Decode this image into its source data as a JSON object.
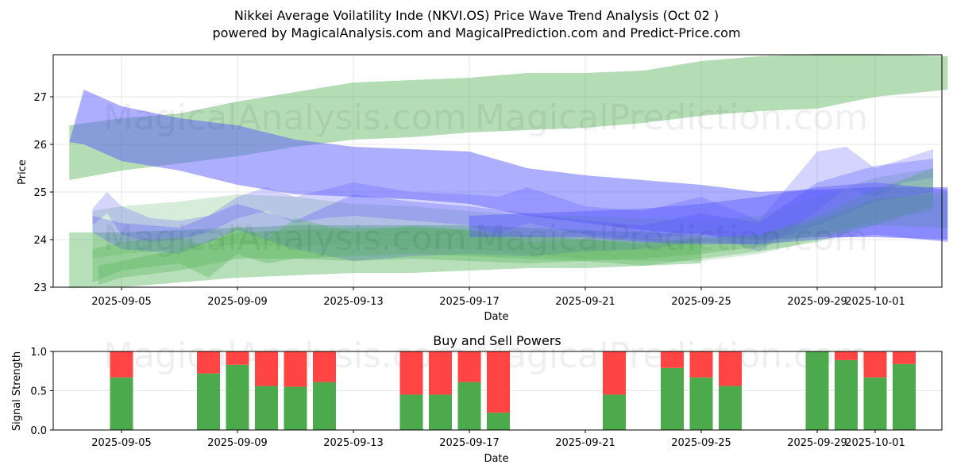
{
  "header": {
    "title": "Nikkei Average Voilatility Inde (NKVI.OS) Price Wave Trend Analysis (Oct 02 )",
    "subtitle": "powered by MagicalAnalysis.com and MagicalPrediction.com and Predict-Price.com"
  },
  "watermarks": [
    "MagicalAnalysis.com",
    "MagicalPrediction.com"
  ],
  "colors": {
    "green_band": "#4caf50",
    "blue_band": "#5555ff",
    "buy": "#4caa4c",
    "sell": "#ff4444"
  },
  "chart_data": [
    {
      "type": "area",
      "title": "",
      "xlabel": "Date",
      "ylabel": "Price",
      "ylim": [
        22.98,
        27.88
      ],
      "xlim_days_from_2025-09-01": [
        1.95,
        32.6
      ],
      "grid": true,
      "x_ticks": [
        "2025-09-05",
        "2025-09-09",
        "2025-09-13",
        "2025-09-17",
        "2025-09-21",
        "2025-09-25",
        "2025-09-29",
        "2025-10-01"
      ],
      "x_tick_days": [
        4,
        8,
        12,
        16,
        20,
        24,
        28,
        30
      ],
      "y_ticks": [
        "23",
        "24",
        "25",
        "26",
        "27"
      ],
      "y_tick_values": [
        23,
        24,
        25,
        26,
        27
      ],
      "bands": [
        {
          "name": "green-upper-band",
          "color": "green",
          "opacity": 0.42,
          "x": [
            2.2,
            4,
            6,
            8,
            10,
            12,
            14,
            16,
            18,
            20,
            22,
            24,
            26,
            28,
            30,
            32.5
          ],
          "upper": [
            26.4,
            26.55,
            26.65,
            26.9,
            27.1,
            27.3,
            27.35,
            27.4,
            27.5,
            27.5,
            27.55,
            27.75,
            27.85,
            27.9,
            27.9,
            27.85
          ],
          "lower": [
            25.25,
            25.45,
            25.6,
            25.75,
            25.95,
            26.1,
            26.15,
            26.25,
            26.3,
            26.35,
            26.45,
            26.6,
            26.7,
            26.75,
            27.0,
            27.15
          ]
        },
        {
          "name": "blue-upper-band",
          "color": "blue",
          "opacity": 0.48,
          "x": [
            2.2,
            2.7,
            4,
            6,
            8,
            10,
            12,
            14,
            16,
            18,
            20,
            22,
            24,
            26,
            28,
            30,
            32.5
          ],
          "upper": [
            26.05,
            27.15,
            26.8,
            26.55,
            26.4,
            26.1,
            25.95,
            25.9,
            25.85,
            25.5,
            25.35,
            25.25,
            25.15,
            25.0,
            25.05,
            25.1,
            25.1
          ],
          "lower": [
            26.05,
            26.0,
            25.65,
            25.45,
            25.15,
            24.95,
            24.9,
            24.85,
            24.75,
            24.5,
            24.35,
            24.2,
            24.1,
            24.0,
            24.05,
            24.05,
            24.0
          ]
        },
        {
          "name": "green-lower-band-1",
          "color": "green",
          "opacity": 0.4,
          "x": [
            2.2,
            4,
            6,
            8,
            10,
            12,
            14,
            16,
            18,
            20,
            22,
            24
          ],
          "upper": [
            24.15,
            24.15,
            24.2,
            24.25,
            24.3,
            24.3,
            24.3,
            24.3,
            24.25,
            24.2,
            24.15,
            24.1
          ],
          "lower": [
            22.98,
            23.0,
            23.1,
            23.2,
            23.25,
            23.3,
            23.3,
            23.35,
            23.4,
            23.4,
            23.45,
            23.5
          ]
        },
        {
          "name": "green-lower-band-2",
          "color": "green",
          "opacity": 0.22,
          "x": [
            3.0,
            4,
            6,
            8,
            10,
            12,
            14,
            16,
            18,
            20,
            22,
            24,
            26,
            28,
            30,
            32
          ],
          "upper": [
            24.6,
            24.7,
            24.8,
            24.95,
            24.9,
            24.75,
            24.7,
            24.6,
            24.5,
            24.5,
            24.45,
            24.4,
            24.5,
            24.9,
            25.3,
            25.5
          ],
          "lower": [
            23.6,
            23.7,
            23.8,
            23.9,
            23.85,
            23.9,
            23.85,
            23.8,
            23.7,
            23.6,
            23.55,
            23.55,
            23.7,
            24.0,
            24.4,
            24.6
          ]
        },
        {
          "name": "blue-lower-band-1",
          "color": "blue",
          "opacity": 0.25,
          "x": [
            3.0,
            3.5,
            4,
            5,
            6,
            7,
            8,
            9,
            10,
            11,
            12,
            14,
            16,
            17,
            18,
            20,
            22,
            24,
            26,
            28,
            29,
            30,
            31,
            32
          ],
          "upper": [
            24.65,
            25.0,
            24.7,
            24.45,
            24.4,
            24.5,
            24.9,
            25.1,
            24.9,
            25.05,
            25.2,
            25.0,
            24.95,
            24.9,
            25.1,
            24.7,
            24.6,
            24.9,
            24.4,
            25.85,
            25.95,
            25.5,
            25.7,
            25.9
          ],
          "lower": [
            24.3,
            24.55,
            24.1,
            23.95,
            24.0,
            24.15,
            24.45,
            24.6,
            24.35,
            24.45,
            24.5,
            24.4,
            24.3,
            24.1,
            24.35,
            24.1,
            24.0,
            24.15,
            23.75,
            24.6,
            25.1,
            24.9,
            25.2,
            25.3
          ]
        },
        {
          "name": "blue-lower-band-2",
          "color": "blue",
          "opacity": 0.3,
          "x": [
            3.0,
            4,
            6,
            8,
            10,
            12,
            14,
            16,
            18,
            20,
            22,
            24,
            26,
            28,
            30,
            32
          ],
          "upper": [
            24.5,
            24.35,
            24.25,
            24.75,
            24.4,
            24.95,
            24.8,
            24.7,
            24.55,
            24.4,
            24.3,
            24.55,
            24.35,
            25.2,
            25.55,
            25.7
          ],
          "lower": [
            24.15,
            23.8,
            23.7,
            24.2,
            23.8,
            23.55,
            23.65,
            23.7,
            23.65,
            23.75,
            23.8,
            23.95,
            23.9,
            24.3,
            24.8,
            25.0
          ]
        },
        {
          "name": "green-lower-band-3",
          "color": "green",
          "opacity": 0.3,
          "x": [
            3.0,
            4,
            6,
            7,
            8,
            9,
            10,
            12,
            14,
            16,
            18,
            20,
            22,
            24,
            26,
            28,
            30,
            32
          ],
          "upper": [
            23.8,
            23.95,
            24.05,
            23.85,
            24.3,
            24.0,
            24.45,
            24.15,
            24.3,
            24.2,
            23.95,
            24.0,
            23.9,
            24.05,
            24.1,
            24.5,
            25.05,
            25.5
          ],
          "lower": [
            23.1,
            23.35,
            23.5,
            23.2,
            23.7,
            23.5,
            23.6,
            23.55,
            23.6,
            23.55,
            23.5,
            23.55,
            23.45,
            23.6,
            23.75,
            23.95,
            24.3,
            24.7
          ]
        },
        {
          "name": "green-lower-band-4",
          "color": "green",
          "opacity": 0.3,
          "x": [
            3.2,
            4,
            6,
            8,
            10,
            12,
            14,
            16,
            18,
            20,
            22,
            24,
            26,
            28,
            30,
            32.5
          ],
          "upper": [
            23.45,
            23.55,
            23.8,
            24.15,
            24.2,
            24.25,
            24.25,
            24.2,
            24.1,
            24.0,
            23.95,
            24.0,
            24.1,
            24.4,
            24.85,
            25.0
          ],
          "lower": [
            23.05,
            23.2,
            23.35,
            23.6,
            23.6,
            23.65,
            23.7,
            23.65,
            23.6,
            23.55,
            23.6,
            23.7,
            23.85,
            24.1,
            24.3,
            24.25
          ]
        },
        {
          "name": "blue-lower-band-3",
          "color": "blue",
          "opacity": 0.4,
          "x": [
            16,
            18,
            20,
            22,
            24,
            26,
            28,
            30,
            32.5
          ],
          "upper": [
            24.5,
            24.55,
            24.6,
            24.65,
            24.75,
            24.9,
            25.1,
            25.2,
            25.05
          ],
          "lower": [
            24.05,
            24.05,
            24.05,
            23.95,
            23.9,
            23.9,
            24.0,
            24.1,
            23.95
          ]
        }
      ]
    },
    {
      "type": "bar",
      "title": "Buy and Sell Powers",
      "xlabel": "Date",
      "ylabel": "Signal Strength",
      "ylim": [
        0,
        1
      ],
      "grid": true,
      "y_ticks": [
        "0.0",
        "0.5",
        "1.0"
      ],
      "y_tick_values": [
        0,
        0.5,
        1.0
      ],
      "x_ticks": [
        "2025-09-05",
        "2025-09-09",
        "2025-09-13",
        "2025-09-17",
        "2025-09-21",
        "2025-09-25",
        "2025-09-29",
        "2025-10-01"
      ],
      "x_tick_days": [
        4,
        8,
        12,
        16,
        20,
        24,
        28,
        30
      ],
      "categories": [
        "2025-09-05",
        "2025-09-08",
        "2025-09-09",
        "2025-09-10",
        "2025-09-11",
        "2025-09-12",
        "2025-09-15",
        "2025-09-16",
        "2025-09-17",
        "2025-09-18",
        "2025-09-22",
        "2025-09-24",
        "2025-09-25",
        "2025-09-26",
        "2025-09-29",
        "2025-09-30",
        "2025-10-01",
        "2025-10-02"
      ],
      "category_days": [
        4,
        7,
        8,
        9,
        10,
        11,
        14,
        15,
        16,
        17,
        21,
        23,
        24,
        25,
        28,
        29,
        30,
        31
      ],
      "series": [
        {
          "name": "Buy",
          "color": "buy",
          "values": [
            0.67,
            0.72,
            0.83,
            0.56,
            0.55,
            0.61,
            0.45,
            0.45,
            0.61,
            0.22,
            0.45,
            0.79,
            0.67,
            0.56,
            1.0,
            0.89,
            0.67,
            0.84
          ]
        },
        {
          "name": "Sell",
          "color": "sell",
          "values": [
            0.33,
            0.28,
            0.17,
            0.44,
            0.45,
            0.39,
            0.55,
            0.55,
            0.39,
            0.78,
            0.55,
            0.21,
            0.33,
            0.44,
            0.0,
            0.11,
            0.33,
            0.16
          ]
        }
      ]
    }
  ]
}
